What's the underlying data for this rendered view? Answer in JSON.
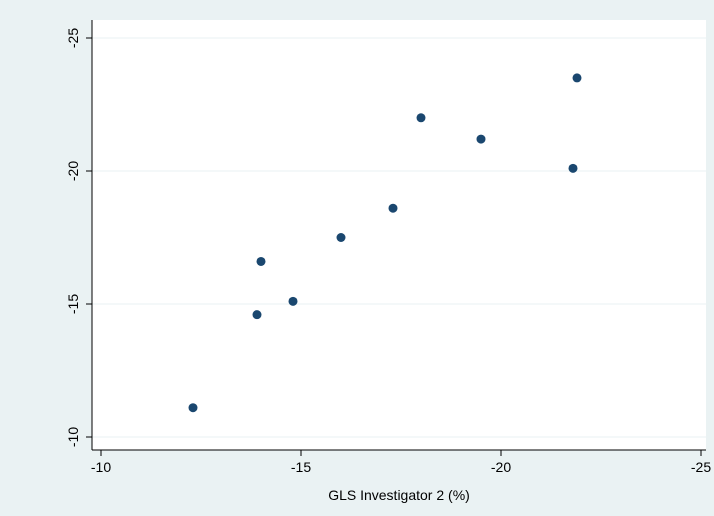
{
  "chart_data": {
    "type": "scatter",
    "title": "",
    "xlabel": "GLS Investigator 2 (%)",
    "ylabel": "",
    "x_reversed": true,
    "y_reversed": true,
    "xlim": [
      -10,
      -25
    ],
    "ylim": [
      -10,
      -25
    ],
    "x_ticks": [
      -10,
      -15,
      -20,
      -25
    ],
    "x_tick_labels": [
      "-10",
      "-15",
      "-20",
      "-25"
    ],
    "y_ticks": [
      -10,
      -15,
      -20,
      -25
    ],
    "y_tick_labels": [
      "-10",
      "-15",
      "-20",
      "-25"
    ],
    "grid": "horizontal",
    "legend": "none",
    "marker_color": "#1a476f",
    "points": [
      {
        "x": -12.3,
        "y": -11.1
      },
      {
        "x": -13.9,
        "y": -14.6
      },
      {
        "x": -14.0,
        "y": -16.6
      },
      {
        "x": -14.8,
        "y": -15.1
      },
      {
        "x": -16.0,
        "y": -17.5
      },
      {
        "x": -17.3,
        "y": -18.6
      },
      {
        "x": -18.0,
        "y": -22.0
      },
      {
        "x": -19.5,
        "y": -21.2
      },
      {
        "x": -21.8,
        "y": -20.1
      },
      {
        "x": -21.9,
        "y": -23.5
      }
    ]
  }
}
